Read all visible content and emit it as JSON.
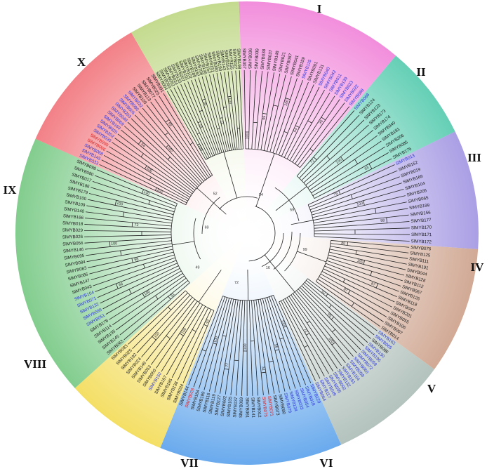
{
  "figure": {
    "clades": [
      {
        "id": "I",
        "label": "I",
        "color": "#f07ad6",
        "start_deg": -10,
        "end_deg": 62,
        "leaves": [
          {
            "name": "SlMYB007",
            "color": "#1a1a1a"
          },
          {
            "name": "SlMYB036",
            "color": "#1a1a1a"
          },
          {
            "name": "SlMYB039",
            "color": "#1a1a1a"
          },
          {
            "name": "SlMYB038",
            "color": "#1a1a1a"
          },
          {
            "name": "SlMYB037",
            "color": "#1a1a1a"
          },
          {
            "name": "SlMYB148",
            "color": "#1a1a1a"
          },
          {
            "name": "SlMYB021",
            "color": "#1a1a1a"
          },
          {
            "name": "SlMYB087",
            "color": "#1a1a1a"
          },
          {
            "name": "SlMYB041",
            "color": "#1a1a1a"
          },
          {
            "name": "SlMYB159",
            "color": "#1a1a1a"
          },
          {
            "name": "SlMYB115",
            "color": "#2b34d8"
          },
          {
            "name": "SlMYB091",
            "color": "#1a1a1a"
          },
          {
            "name": "SlMYB131",
            "color": "#1a1a1a"
          },
          {
            "name": "SlMYB040",
            "color": "#2b34d8"
          },
          {
            "name": "SlMYB042",
            "color": "#2b34d8"
          },
          {
            "name": "SlMYB011",
            "color": "#2b34d8"
          },
          {
            "name": "SlMYB139",
            "color": "#2b34d8"
          },
          {
            "name": "SlMYB023",
            "color": "#2b34d8"
          },
          {
            "name": "SlMYB022",
            "color": "#2b34d8"
          },
          {
            "name": "SlMYB088",
            "color": "#2b34d8"
          }
        ]
      },
      {
        "id": "II",
        "label": "II",
        "color": "#49c7a8",
        "start_deg": 62,
        "end_deg": 98,
        "leaves": [
          {
            "name": "SlMYB068",
            "color": "#2b34d8"
          },
          {
            "name": "SlMYB124",
            "color": "#1a1a1a"
          },
          {
            "name": "SlMYB123",
            "color": "#1a1a1a"
          },
          {
            "name": "SlMYB173",
            "color": "#1a1a1a"
          },
          {
            "name": "SlMYB174",
            "color": "#1a1a1a"
          },
          {
            "name": "SlMYB040",
            "color": "#1a1a1a"
          },
          {
            "name": "SlMYB181",
            "color": "#1a1a1a"
          },
          {
            "name": "SlMYB206",
            "color": "#1a1a1a"
          },
          {
            "name": "SlMYB085",
            "color": "#1a1a1a"
          },
          {
            "name": "SlMYB175",
            "color": "#1a1a1a"
          }
        ]
      },
      {
        "id": "III",
        "label": "III",
        "color": "#9b8ee0",
        "start_deg": 98,
        "end_deg": 122,
        "leaves": [
          {
            "name": "SlMYB013",
            "color": "#2b34d8"
          },
          {
            "name": "SlMYB162",
            "color": "#1a1a1a"
          },
          {
            "name": "SlMYB019",
            "color": "#1a1a1a"
          },
          {
            "name": "SlMYB168",
            "color": "#1a1a1a"
          },
          {
            "name": "SlMYB104",
            "color": "#1a1a1a"
          },
          {
            "name": "SlMYB205",
            "color": "#1a1a1a"
          },
          {
            "name": "SlMYB065",
            "color": "#1a1a1a"
          },
          {
            "name": "SlMYB199",
            "color": "#1a1a1a"
          },
          {
            "name": "SlMYB156",
            "color": "#1a1a1a"
          },
          {
            "name": "SlMYB177",
            "color": "#1a1a1a"
          },
          {
            "name": "SlMYB170",
            "color": "#1a1a1a"
          },
          {
            "name": "SlMYB171",
            "color": "#1a1a1a"
          },
          {
            "name": "SlMYB172",
            "color": "#1a1a1a"
          }
        ]
      },
      {
        "id": "IV",
        "label": "IV",
        "color": "#c99a82",
        "start_deg": 122,
        "end_deg": 150,
        "leaves": [
          {
            "name": "SlMYB076",
            "color": "#1a1a1a"
          },
          {
            "name": "SlMYB125",
            "color": "#1a1a1a"
          },
          {
            "name": "SlMYB111",
            "color": "#1a1a1a"
          },
          {
            "name": "SlMYB191",
            "color": "#1a1a1a"
          },
          {
            "name": "SlMYB044",
            "color": "#1a1a1a"
          },
          {
            "name": "SlMYB128",
            "color": "#1a1a1a"
          },
          {
            "name": "SlMYB112",
            "color": "#1a1a1a"
          },
          {
            "name": "SlMYB067",
            "color": "#1a1a1a"
          },
          {
            "name": "SlMYB126",
            "color": "#1a1a1a"
          },
          {
            "name": "SlMYB118",
            "color": "#1a1a1a"
          },
          {
            "name": "SlMYB047",
            "color": "#1a1a1a"
          },
          {
            "name": "SlMYB201",
            "color": "#1a1a1a"
          },
          {
            "name": "SlMYB055",
            "color": "#1a1a1a"
          },
          {
            "name": "SlMYB106",
            "color": "#1a1a1a"
          },
          {
            "name": "SlMYB007",
            "color": "#1a1a1a"
          },
          {
            "name": "SlMYB014",
            "color": "#1a1a1a"
          }
        ]
      },
      {
        "id": "V",
        "label": "V",
        "color": "#a6b8b2",
        "start_deg": 150,
        "end_deg": 180,
        "leaves": [
          {
            "name": "SlMYB163",
            "color": "#2b34d8"
          },
          {
            "name": "SlMYB065",
            "color": "#2b34d8"
          },
          {
            "name": "SlMYB096",
            "color": "#1a1a1a"
          },
          {
            "name": "SlMYB130",
            "color": "#2b34d8"
          },
          {
            "name": "SlMYB196",
            "color": "#2b34d8"
          },
          {
            "name": "SlMYB059",
            "color": "#2b34d8"
          },
          {
            "name": "SlMYB072",
            "color": "#2b34d8"
          },
          {
            "name": "SlMYB060",
            "color": "#2b34d8"
          },
          {
            "name": "SlMYB058",
            "color": "#2b34d8"
          },
          {
            "name": "SlMYB164",
            "color": "#2b34d8"
          },
          {
            "name": "SlMYB161",
            "color": "#2b34d8"
          },
          {
            "name": "SlMYB132",
            "color": "#2b34d8"
          },
          {
            "name": "SlMYB092",
            "color": "#2b34d8"
          },
          {
            "name": "SlMYB035",
            "color": "#2b34d8"
          },
          {
            "name": "SlMYB049",
            "color": "#2b34d8"
          },
          {
            "name": "SlMYB117",
            "color": "#2b34d8"
          },
          {
            "name": "SlMYB064",
            "color": "#2b34d8"
          }
        ]
      },
      {
        "id": "VI",
        "label": "VI",
        "color": "#4f9bea",
        "start_deg": 180,
        "end_deg": 228,
        "leaves": [
          {
            "name": "SlMYB129",
            "color": "#2b34d8"
          },
          {
            "name": "SlMYB018",
            "color": "#2b34d8"
          },
          {
            "name": "SlMYB054",
            "color": "#2b34d8"
          },
          {
            "name": "SlMYB033",
            "color": "#2b34d8"
          },
          {
            "name": "SlMYB134",
            "color": "#2b34d8"
          },
          {
            "name": "SlMYB079",
            "color": "#2b34d8"
          },
          {
            "name": "SlMYB080",
            "color": "#1a1a1a"
          },
          {
            "name": "SlMYB073",
            "color": "#1a1a1a"
          },
          {
            "name": "SlMYB071",
            "color": "#e02020"
          },
          {
            "name": "SlMYB075",
            "color": "#e02020"
          },
          {
            "name": "SlMYB012",
            "color": "#1a1a1a"
          },
          {
            "name": "SlMYB141",
            "color": "#1a1a1a"
          },
          {
            "name": "SlMYB061",
            "color": "#1a1a1a"
          },
          {
            "name": "SlMYB069",
            "color": "#1a1a1a"
          },
          {
            "name": "SlMYB137",
            "color": "#1a1a1a"
          },
          {
            "name": "SlMYB105",
            "color": "#1a1a1a"
          },
          {
            "name": "SlMYB002",
            "color": "#1a1a1a"
          },
          {
            "name": "SlMYB127",
            "color": "#1a1a1a"
          },
          {
            "name": "SlMYB119",
            "color": "#1a1a1a"
          },
          {
            "name": "SlMYB116",
            "color": "#1a1a1a"
          },
          {
            "name": "SlMYB189",
            "color": "#1a1a1a"
          },
          {
            "name": "SlMYB184",
            "color": "#1a1a1a"
          },
          {
            "name": "SlMYB028",
            "color": "#e02020"
          },
          {
            "name": "SlMYB144",
            "color": "#1a1a1a"
          }
        ]
      },
      {
        "id": "VII",
        "label": "VII",
        "color": "#f2d94a",
        "start_deg": 228,
        "end_deg": 258,
        "leaves": [
          {
            "name": "SlMYB034",
            "color": "#1a1a1a"
          },
          {
            "name": "SlMYB138",
            "color": "#1a1a1a"
          },
          {
            "name": "SlMYB185",
            "color": "#1a1a1a"
          },
          {
            "name": "SlMYB197",
            "color": "#1a1a1a"
          },
          {
            "name": "SlMYB150",
            "color": "#2b34d8"
          },
          {
            "name": "SlMYB050",
            "color": "#1a1a1a"
          },
          {
            "name": "SlMYB053",
            "color": "#1a1a1a"
          },
          {
            "name": "SlMYB149",
            "color": "#1a1a1a"
          },
          {
            "name": "SlMYB024",
            "color": "#1a1a1a"
          },
          {
            "name": "SlMYB192",
            "color": "#1a1a1a"
          },
          {
            "name": "SlMYB025",
            "color": "#1a1a1a"
          },
          {
            "name": "SlMYB093",
            "color": "#1a1a1a"
          }
        ]
      },
      {
        "id": "VIII",
        "label": "VIII",
        "color": "#6cc47a",
        "start_deg": 258,
        "end_deg": 336,
        "leaves": [
          {
            "name": "SlMYB063",
            "color": "#1a1a1a"
          },
          {
            "name": "SlMYB145",
            "color": "#1a1a1a"
          },
          {
            "name": "SlMYB135",
            "color": "#1a1a1a"
          },
          {
            "name": "SlMYB114",
            "color": "#1a1a1a"
          },
          {
            "name": "SlMYB178",
            "color": "#1a1a1a"
          },
          {
            "name": "SlMYB051",
            "color": "#2b34d8"
          },
          {
            "name": "SlMYB099",
            "color": "#2b34d8"
          },
          {
            "name": "SlMYB132",
            "color": "#2b34d8"
          },
          {
            "name": "SlMYB071",
            "color": "#2b34d8"
          },
          {
            "name": "SlMYB104",
            "color": "#2b34d8"
          },
          {
            "name": "SlMYB043",
            "color": "#1a1a1a"
          },
          {
            "name": "SlMYB147",
            "color": "#1a1a1a"
          },
          {
            "name": "SlMYB086",
            "color": "#1a1a1a"
          },
          {
            "name": "SlMYB083",
            "color": "#1a1a1a"
          },
          {
            "name": "SlMYB084",
            "color": "#1a1a1a"
          },
          {
            "name": "SlMYB095",
            "color": "#1a1a1a"
          },
          {
            "name": "SlMYB146",
            "color": "#1a1a1a"
          },
          {
            "name": "SlMYB056",
            "color": "#1a1a1a"
          },
          {
            "name": "SlMYB026",
            "color": "#1a1a1a"
          },
          {
            "name": "SlMYB029",
            "color": "#1a1a1a"
          },
          {
            "name": "SlMYB018",
            "color": "#1a1a1a"
          },
          {
            "name": "SlMYB166",
            "color": "#1a1a1a"
          },
          {
            "name": "SlMYB140",
            "color": "#1a1a1a"
          },
          {
            "name": "SlMYB109",
            "color": "#1a1a1a"
          },
          {
            "name": "SlMYB100",
            "color": "#1a1a1a"
          },
          {
            "name": "SlMYB179",
            "color": "#1a1a1a"
          },
          {
            "name": "SlMYB186",
            "color": "#1a1a1a"
          },
          {
            "name": "SlMYB017",
            "color": "#1a1a1a"
          },
          {
            "name": "SlMYB080",
            "color": "#1a1a1a"
          },
          {
            "name": "SlMYB098",
            "color": "#1a1a1a"
          }
        ]
      },
      {
        "id": "IX",
        "label": "IX",
        "color": "#f06a72",
        "start_deg": 336,
        "end_deg": 376,
        "leaves": [
          {
            "name": "SlMYB033",
            "color": "#2b34d8"
          },
          {
            "name": "SlMYB145",
            "color": "#2b34d8"
          },
          {
            "name": "SlMYB068",
            "color": "#2b34d8"
          },
          {
            "name": "SlMYB006",
            "color": "#e02020"
          },
          {
            "name": "SlMYB099",
            "color": "#e02020"
          },
          {
            "name": "SlMYB030",
            "color": "#2b34d8"
          },
          {
            "name": "SlMYB202",
            "color": "#2b34d8"
          },
          {
            "name": "SlMYB020",
            "color": "#2b34d8"
          },
          {
            "name": "SlMYB169",
            "color": "#2b34d8"
          },
          {
            "name": "SlMYB069",
            "color": "#2b34d8"
          },
          {
            "name": "SlMYB048",
            "color": "#2b34d8"
          },
          {
            "name": "SlMYB203",
            "color": "#2b34d8"
          },
          {
            "name": "SlMYB005",
            "color": "#2b34d8"
          },
          {
            "name": "SlMYB090",
            "color": "#2b34d8"
          },
          {
            "name": "SlMYB032",
            "color": "#2b34d8"
          },
          {
            "name": "SlMYB103",
            "color": "#1a1a1a"
          },
          {
            "name": "SlMYB113",
            "color": "#1a1a1a"
          },
          {
            "name": "SlMYB077",
            "color": "#1a1a1a"
          },
          {
            "name": "SlMYB025",
            "color": "#1a1a1a"
          },
          {
            "name": "SlMYB091",
            "color": "#1a1a1a"
          }
        ]
      },
      {
        "id": "X",
        "label": "X",
        "color": "#b9d47a",
        "start_deg": 376,
        "end_deg": 350,
        "leaves": [
          {
            "name": "SlMYB004",
            "color": "#1a1a1a"
          },
          {
            "name": "SlMYB093",
            "color": "#1a1a1a"
          },
          {
            "name": "SlMYB052",
            "color": "#1a1a1a"
          },
          {
            "name": "SlMYB024",
            "color": "#1a1a1a"
          },
          {
            "name": "SlMYB133",
            "color": "#1a1a1a"
          },
          {
            "name": "SlMYB207",
            "color": "#1a1a1a"
          },
          {
            "name": "SlMYB101",
            "color": "#1a1a1a"
          },
          {
            "name": "SlMYB102",
            "color": "#1a1a1a"
          },
          {
            "name": "SlMYB189",
            "color": "#1a1a1a"
          },
          {
            "name": "SlMYB182",
            "color": "#1a1a1a"
          },
          {
            "name": "SlMYB208",
            "color": "#1a1a1a"
          },
          {
            "name": "SlMYB136",
            "color": "#1a1a1a"
          },
          {
            "name": "SlMYB152",
            "color": "#1a1a1a"
          },
          {
            "name": "SlMYB151",
            "color": "#1a1a1a"
          },
          {
            "name": "SlMYB090",
            "color": "#1a1a1a"
          },
          {
            "name": "SlMYB190",
            "color": "#1a1a1a"
          },
          {
            "name": "SlMYB143",
            "color": "#1a1a1a"
          },
          {
            "name": "SlMYB154",
            "color": "#1a1a1a"
          },
          {
            "name": "SlMYB155",
            "color": "#1a1a1a"
          },
          {
            "name": "SlMYB027",
            "color": "#1a1a1a"
          },
          {
            "name": "SlMYB198",
            "color": "#1a1a1a"
          }
        ]
      }
    ],
    "bootstrap_values": [
      "100",
      "99",
      "100",
      "54",
      "36",
      "72",
      "100",
      "63",
      "79",
      "100",
      "98",
      "80",
      "100",
      "87",
      "97",
      "62",
      "95",
      "100",
      "72",
      "100",
      "56",
      "34",
      "100",
      "77",
      "100",
      "43",
      "100",
      "100",
      "91",
      "100",
      "66",
      "98",
      "100",
      "72",
      "100",
      "100",
      "100",
      "100",
      "54"
    ],
    "root_support": [
      "54",
      "59",
      "99",
      "16",
      "72",
      "49",
      "69",
      "52"
    ]
  }
}
